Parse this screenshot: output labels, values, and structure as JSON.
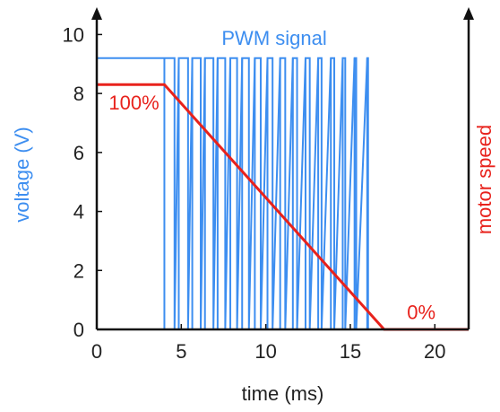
{
  "chart_data": {
    "type": "line",
    "xlabel": "time (ms)",
    "ylabel": "voltage (V)",
    "y2label": "motor speed",
    "xlim": [
      0,
      22
    ],
    "ylim": [
      0,
      10.5
    ],
    "x_ticks": [
      0,
      5,
      10,
      15,
      20
    ],
    "y_ticks": [
      0,
      2,
      4,
      6,
      8,
      10
    ],
    "grid": false,
    "series": [
      {
        "name": "PWM signal",
        "color": "#3d8ef0",
        "high": 9.2,
        "low": 0,
        "constant_high_until": 4,
        "pulses": [
          [
            4,
            4.6
          ],
          [
            4.85,
            5.4
          ],
          [
            5.65,
            6.15
          ],
          [
            6.4,
            6.9
          ],
          [
            7.15,
            7.6
          ],
          [
            7.9,
            8.3
          ],
          [
            8.6,
            9.0
          ],
          [
            9.35,
            9.7
          ],
          [
            10.1,
            10.4
          ],
          [
            10.85,
            11.15
          ],
          [
            11.6,
            11.85
          ],
          [
            12.35,
            12.6
          ],
          [
            13.1,
            13.3
          ],
          [
            13.85,
            14.05
          ],
          [
            14.55,
            14.7
          ],
          [
            15.25,
            15.35
          ],
          [
            16.0,
            16.05
          ]
        ]
      },
      {
        "name": "motor speed",
        "color": "#e8221c",
        "points": [
          [
            0,
            8.3
          ],
          [
            4,
            8.3
          ],
          [
            17,
            0
          ],
          [
            22,
            0
          ]
        ]
      }
    ],
    "annotations": [
      {
        "text": "100%",
        "x": 2.2,
        "y": 7.7,
        "color": "#e8221c"
      },
      {
        "text": "0%",
        "x": 19.2,
        "y": 0.6,
        "color": "#e8221c"
      }
    ]
  }
}
